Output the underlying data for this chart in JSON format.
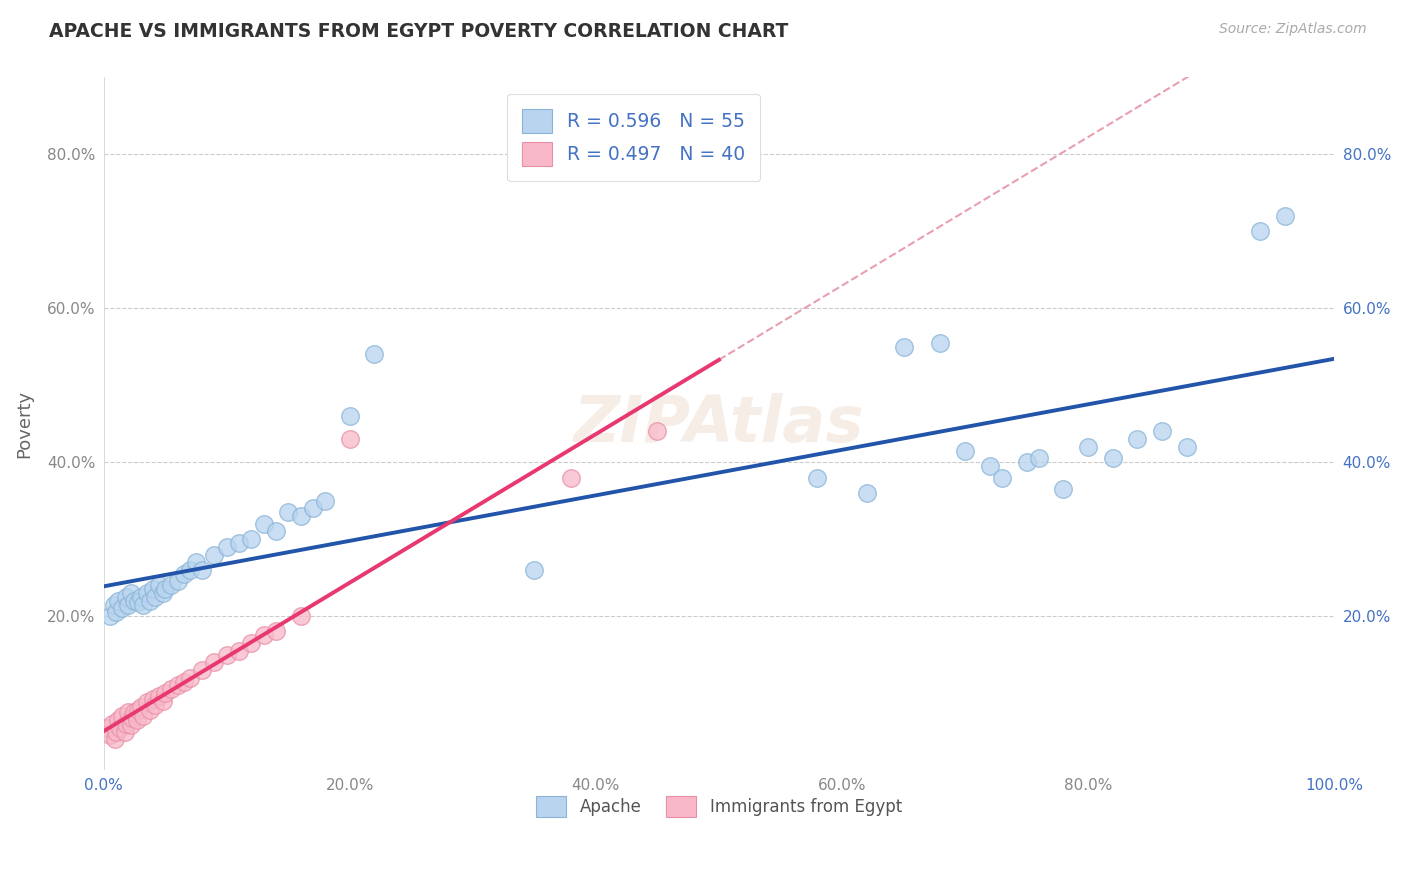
{
  "title": "APACHE VS IMMIGRANTS FROM EGYPT POVERTY CORRELATION CHART",
  "source": "Source: ZipAtlas.com",
  "ylabel": "Poverty",
  "xlim": [
    0.0,
    1.0
  ],
  "ylim": [
    0.0,
    0.9
  ],
  "xtick_labels": [
    "0.0%",
    "20.0%",
    "40.0%",
    "60.0%",
    "80.0%",
    "100.0%"
  ],
  "xtick_vals": [
    0.0,
    0.2,
    0.4,
    0.6,
    0.8,
    1.0
  ],
  "ytick_labels": [
    "20.0%",
    "40.0%",
    "60.0%",
    "80.0%"
  ],
  "ytick_vals": [
    0.2,
    0.4,
    0.6,
    0.8
  ],
  "grid_color": "#cccccc",
  "apache_face_color": "#b8d4ee",
  "apache_edge_color": "#8ab4d8",
  "egypt_face_color": "#f8b8c8",
  "egypt_edge_color": "#e890a8",
  "apache_line_color": "#2255aa",
  "egypt_line_color": "#e83870",
  "egypt_dash_color": "#e8a0b0",
  "right_axis_color": "#4472c4",
  "left_axis_color": "#4472c4",
  "legend_r1": "R = 0.596",
  "legend_n1": "N = 55",
  "legend_r2": "R = 0.497",
  "legend_n2": "N = 40",
  "watermark": "ZIPAtlas",
  "apache_x": [
    0.005,
    0.008,
    0.01,
    0.012,
    0.015,
    0.018,
    0.02,
    0.022,
    0.025,
    0.028,
    0.03,
    0.032,
    0.035,
    0.038,
    0.04,
    0.042,
    0.045,
    0.048,
    0.05,
    0.055,
    0.06,
    0.065,
    0.07,
    0.075,
    0.08,
    0.09,
    0.1,
    0.11,
    0.12,
    0.13,
    0.14,
    0.15,
    0.16,
    0.17,
    0.18,
    0.2,
    0.22,
    0.35,
    0.58,
    0.62,
    0.65,
    0.68,
    0.7,
    0.72,
    0.73,
    0.75,
    0.76,
    0.78,
    0.8,
    0.82,
    0.84,
    0.86,
    0.88,
    0.94,
    0.96
  ],
  "apache_y": [
    0.2,
    0.215,
    0.205,
    0.22,
    0.21,
    0.225,
    0.215,
    0.23,
    0.22,
    0.218,
    0.225,
    0.215,
    0.23,
    0.22,
    0.235,
    0.225,
    0.24,
    0.23,
    0.235,
    0.24,
    0.245,
    0.255,
    0.26,
    0.27,
    0.26,
    0.28,
    0.29,
    0.295,
    0.3,
    0.32,
    0.31,
    0.335,
    0.33,
    0.34,
    0.35,
    0.46,
    0.54,
    0.26,
    0.38,
    0.36,
    0.55,
    0.555,
    0.415,
    0.395,
    0.38,
    0.4,
    0.405,
    0.365,
    0.42,
    0.405,
    0.43,
    0.44,
    0.42,
    0.7,
    0.72
  ],
  "egypt_x": [
    0.003,
    0.005,
    0.007,
    0.009,
    0.01,
    0.012,
    0.013,
    0.015,
    0.017,
    0.018,
    0.02,
    0.022,
    0.023,
    0.025,
    0.027,
    0.028,
    0.03,
    0.032,
    0.035,
    0.038,
    0.04,
    0.042,
    0.045,
    0.048,
    0.05,
    0.055,
    0.06,
    0.065,
    0.07,
    0.08,
    0.09,
    0.1,
    0.11,
    0.12,
    0.13,
    0.14,
    0.16,
    0.2,
    0.38,
    0.45
  ],
  "egypt_y": [
    0.055,
    0.045,
    0.06,
    0.04,
    0.05,
    0.065,
    0.055,
    0.07,
    0.05,
    0.06,
    0.075,
    0.058,
    0.068,
    0.075,
    0.065,
    0.078,
    0.082,
    0.07,
    0.088,
    0.078,
    0.092,
    0.085,
    0.096,
    0.09,
    0.1,
    0.105,
    0.11,
    0.115,
    0.12,
    0.13,
    0.14,
    0.15,
    0.155,
    0.165,
    0.175,
    0.18,
    0.2,
    0.43,
    0.38,
    0.44
  ]
}
